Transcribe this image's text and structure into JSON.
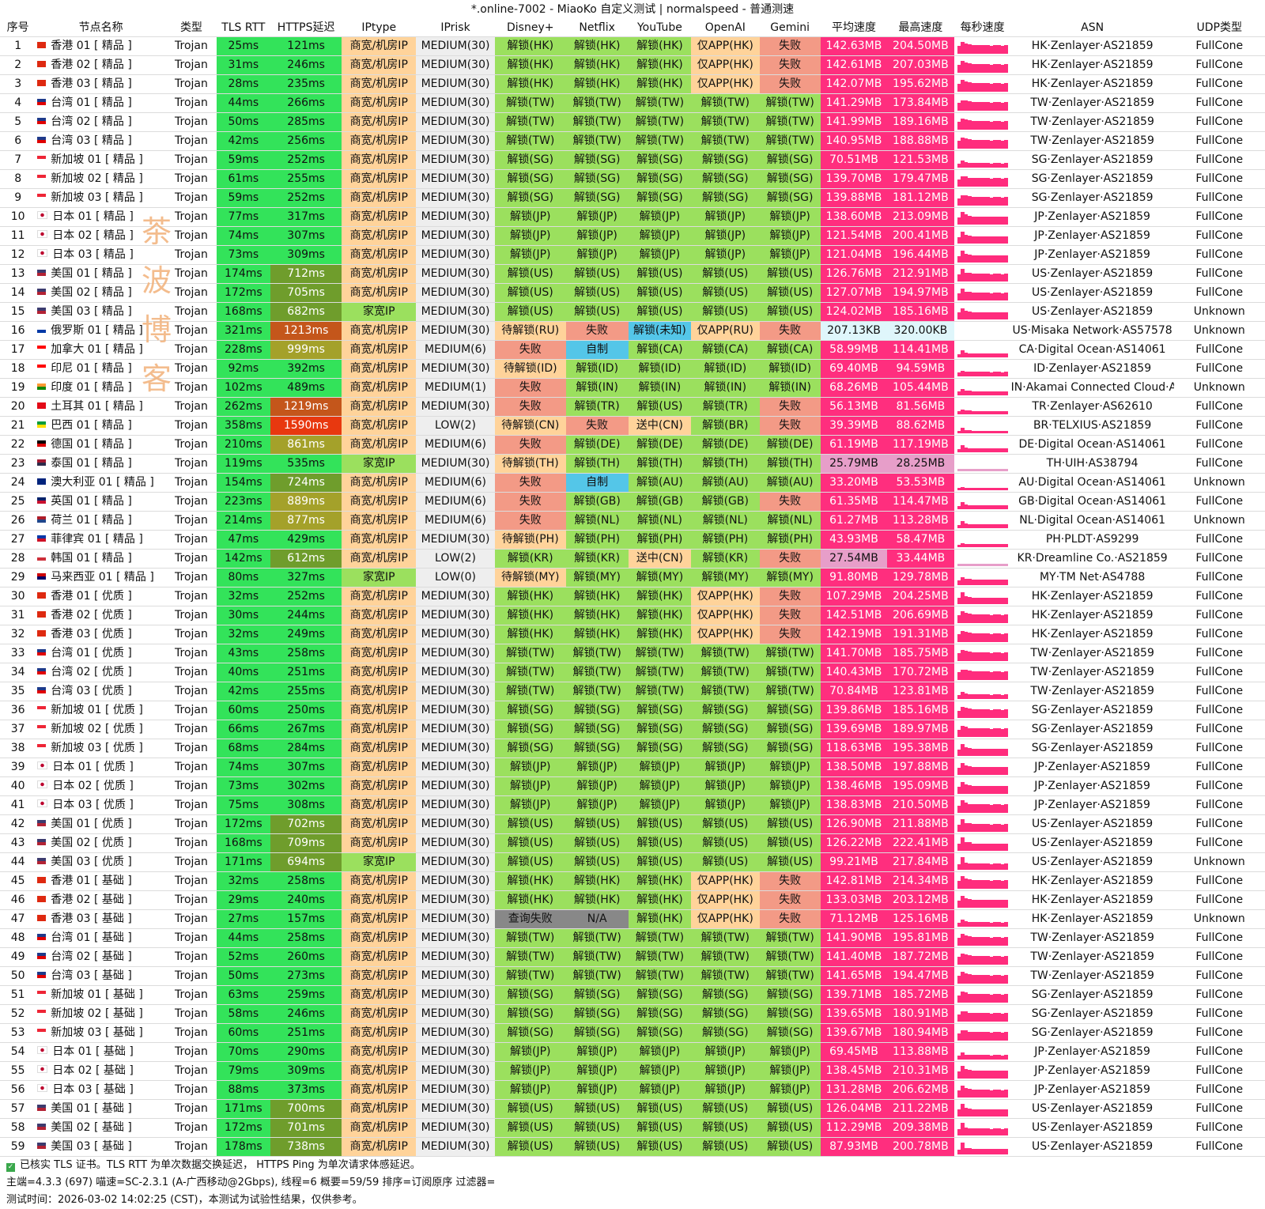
{
  "title": "*.online-7002 - MiaoKo 自定义测试 | normalspeed - 普通测速",
  "colors": {
    "green": "#33e35a",
    "lightgreen": "#9be05e",
    "orange": "#ff9f3d",
    "peach": "#ffd39a",
    "gray": "#888888",
    "lightgray": "#eeeeee",
    "red": "#ff5c5c",
    "salmon": "#f39a86",
    "pink": "#ff2e7e",
    "lightpink": "#e79ec9",
    "blue": "#54c6e8",
    "lightblue": "#dff6fb",
    "darkgreen": "#6f9d2c",
    "olive": "#a4a12a",
    "brownred": "#c4561b",
    "redorange": "#e8380f",
    "white": "#ffffff"
  },
  "headers": [
    "序号",
    "节点名称",
    "类型",
    "TLS RTT",
    "HTTPS延迟",
    "IPtype",
    "IPrisk",
    "Disney+",
    "Netflix",
    "YouTube",
    "OpenAI",
    "Gemini",
    "平均速度",
    "最高速度",
    "每秒速度",
    "ASN",
    "UDP类型"
  ],
  "rows": [
    [
      "1",
      "香港 01 [ 精品 ]",
      "Trojan",
      "25ms",
      "121ms",
      "商宽/机房IP",
      "MEDIUM(30)",
      "解锁(HK)",
      "解锁(HK)",
      "解锁(HK)",
      "仅APP(HK)",
      "失败",
      "142.63MB",
      "204.50MB",
      "HK·Zenlayer·AS21859",
      "FullCone"
    ],
    [
      "2",
      "香港 02 [ 精品 ]",
      "Trojan",
      "31ms",
      "246ms",
      "商宽/机房IP",
      "MEDIUM(30)",
      "解锁(HK)",
      "解锁(HK)",
      "解锁(HK)",
      "仅APP(HK)",
      "失败",
      "142.61MB",
      "207.03MB",
      "HK·Zenlayer·AS21859",
      "FullCone"
    ],
    [
      "3",
      "香港 03 [ 精品 ]",
      "Trojan",
      "28ms",
      "235ms",
      "商宽/机房IP",
      "MEDIUM(30)",
      "解锁(HK)",
      "解锁(HK)",
      "解锁(HK)",
      "仅APP(HK)",
      "失败",
      "142.07MB",
      "195.62MB",
      "HK·Zenlayer·AS21859",
      "FullCone"
    ],
    [
      "4",
      "台湾 01 [ 精品 ]",
      "Trojan",
      "44ms",
      "266ms",
      "商宽/机房IP",
      "MEDIUM(30)",
      "解锁(TW)",
      "解锁(TW)",
      "解锁(TW)",
      "解锁(TW)",
      "解锁(TW)",
      "141.29MB",
      "173.84MB",
      "TW·Zenlayer·AS21859",
      "FullCone"
    ],
    [
      "5",
      "台湾 02 [ 精品 ]",
      "Trojan",
      "50ms",
      "285ms",
      "商宽/机房IP",
      "MEDIUM(30)",
      "解锁(TW)",
      "解锁(TW)",
      "解锁(TW)",
      "解锁(TW)",
      "解锁(TW)",
      "141.99MB",
      "189.16MB",
      "TW·Zenlayer·AS21859",
      "FullCone"
    ],
    [
      "6",
      "台湾 03 [ 精品 ]",
      "Trojan",
      "42ms",
      "256ms",
      "商宽/机房IP",
      "MEDIUM(30)",
      "解锁(TW)",
      "解锁(TW)",
      "解锁(TW)",
      "解锁(TW)",
      "解锁(TW)",
      "140.95MB",
      "188.88MB",
      "TW·Zenlayer·AS21859",
      "FullCone"
    ],
    [
      "7",
      "新加坡 01 [ 精品 ]",
      "Trojan",
      "59ms",
      "252ms",
      "商宽/机房IP",
      "MEDIUM(30)",
      "解锁(SG)",
      "解锁(SG)",
      "解锁(SG)",
      "解锁(SG)",
      "解锁(SG)",
      "70.51MB",
      "121.53MB",
      "SG·Zenlayer·AS21859",
      "FullCone"
    ],
    [
      "8",
      "新加坡 02 [ 精品 ]",
      "Trojan",
      "61ms",
      "255ms",
      "商宽/机房IP",
      "MEDIUM(30)",
      "解锁(SG)",
      "解锁(SG)",
      "解锁(SG)",
      "解锁(SG)",
      "解锁(SG)",
      "139.70MB",
      "179.47MB",
      "SG·Zenlayer·AS21859",
      "FullCone"
    ],
    [
      "9",
      "新加坡 03 [ 精品 ]",
      "Trojan",
      "59ms",
      "252ms",
      "商宽/机房IP",
      "MEDIUM(30)",
      "解锁(SG)",
      "解锁(SG)",
      "解锁(SG)",
      "解锁(SG)",
      "解锁(SG)",
      "139.88MB",
      "181.12MB",
      "SG·Zenlayer·AS21859",
      "FullCone"
    ],
    [
      "10",
      "日本 01 [ 精品 ]",
      "Trojan",
      "77ms",
      "317ms",
      "商宽/机房IP",
      "MEDIUM(30)",
      "解锁(JP)",
      "解锁(JP)",
      "解锁(JP)",
      "解锁(JP)",
      "解锁(JP)",
      "138.60MB",
      "213.09MB",
      "JP·Zenlayer·AS21859",
      "FullCone"
    ],
    [
      "11",
      "日本 02 [ 精品 ]",
      "Trojan",
      "74ms",
      "307ms",
      "商宽/机房IP",
      "MEDIUM(30)",
      "解锁(JP)",
      "解锁(JP)",
      "解锁(JP)",
      "解锁(JP)",
      "解锁(JP)",
      "121.54MB",
      "200.41MB",
      "JP·Zenlayer·AS21859",
      "FullCone"
    ],
    [
      "12",
      "日本 03 [ 精品 ]",
      "Trojan",
      "73ms",
      "309ms",
      "商宽/机房IP",
      "MEDIUM(30)",
      "解锁(JP)",
      "解锁(JP)",
      "解锁(JP)",
      "解锁(JP)",
      "解锁(JP)",
      "121.04MB",
      "196.44MB",
      "JP·Zenlayer·AS21859",
      "FullCone"
    ],
    [
      "13",
      "美国 01 [ 精品 ]",
      "Trojan",
      "174ms",
      "712ms",
      "商宽/机房IP",
      "MEDIUM(30)",
      "解锁(US)",
      "解锁(US)",
      "解锁(US)",
      "解锁(US)",
      "解锁(US)",
      "126.76MB",
      "212.91MB",
      "US·Zenlayer·AS21859",
      "FullCone"
    ],
    [
      "14",
      "美国 02 [ 精品 ]",
      "Trojan",
      "172ms",
      "705ms",
      "商宽/机房IP",
      "MEDIUM(30)",
      "解锁(US)",
      "解锁(US)",
      "解锁(US)",
      "解锁(US)",
      "解锁(US)",
      "127.07MB",
      "194.97MB",
      "US·Zenlayer·AS21859",
      "FullCone"
    ],
    [
      "15",
      "美国 03 [ 精品 ]",
      "Trojan",
      "168ms",
      "682ms",
      "家宽IP",
      "MEDIUM(30)",
      "解锁(US)",
      "解锁(US)",
      "解锁(US)",
      "解锁(US)",
      "解锁(US)",
      "124.02MB",
      "185.16MB",
      "US·Zenlayer·AS21859",
      "Unknown"
    ],
    [
      "16",
      "俄罗斯 01 [ 精品 ]",
      "Trojan",
      "321ms",
      "1213ms",
      "商宽/机房IP",
      "MEDIUM(30)",
      "待解锁(RU)",
      "失败",
      "解锁(未知)",
      "仅APP(RU)",
      "失败",
      "207.13KB",
      "320.00KB",
      "US·Misaka Network·AS57578",
      "Unknown"
    ],
    [
      "17",
      "加拿大 01 [ 精品 ]",
      "Trojan",
      "228ms",
      "999ms",
      "商宽/机房IP",
      "MEDIUM(6)",
      "失败",
      "自制",
      "解锁(CA)",
      "解锁(CA)",
      "解锁(CA)",
      "58.99MB",
      "114.41MB",
      "CA·Digital Ocean·AS14061",
      "FullCone"
    ],
    [
      "18",
      "印尼 01 [ 精品 ]",
      "Trojan",
      "92ms",
      "392ms",
      "商宽/机房IP",
      "MEDIUM(30)",
      "待解锁(ID)",
      "解锁(ID)",
      "解锁(ID)",
      "解锁(ID)",
      "解锁(ID)",
      "69.40MB",
      "94.59MB",
      "ID·Zenlayer·AS21859",
      "FullCone"
    ],
    [
      "19",
      "印度 01 [ 精品 ]",
      "Trojan",
      "102ms",
      "489ms",
      "商宽/机房IP",
      "MEDIUM(1)",
      "失败",
      "解锁(IN)",
      "解锁(IN)",
      "解锁(IN)",
      "解锁(IN)",
      "68.26MB",
      "105.44MB",
      "IN·Akamai Connected Cloud·AS63949",
      "Unknown"
    ],
    [
      "20",
      "土耳其 01 [ 精品 ]",
      "Trojan",
      "262ms",
      "1219ms",
      "商宽/机房IP",
      "MEDIUM(30)",
      "失败",
      "解锁(TR)",
      "解锁(US)",
      "解锁(TR)",
      "失败",
      "56.13MB",
      "81.56MB",
      "TR·Zenlayer·AS62610",
      "FullCone"
    ],
    [
      "21",
      "巴西 01 [ 精品 ]",
      "Trojan",
      "358ms",
      "1590ms",
      "商宽/机房IP",
      "LOW(2)",
      "待解锁(CN)",
      "失败",
      "送中(CN)",
      "解锁(BR)",
      "失败",
      "39.39MB",
      "88.62MB",
      "BR·TELXIUS·AS21859",
      "FullCone"
    ],
    [
      "22",
      "德国 01 [ 精品 ]",
      "Trojan",
      "210ms",
      "861ms",
      "商宽/机房IP",
      "MEDIUM(6)",
      "失败",
      "解锁(DE)",
      "解锁(DE)",
      "解锁(DE)",
      "解锁(DE)",
      "61.19MB",
      "117.19MB",
      "DE·Digital Ocean·AS14061",
      "FullCone"
    ],
    [
      "23",
      "泰国 01 [ 精品 ]",
      "Trojan",
      "119ms",
      "535ms",
      "家宽IP",
      "MEDIUM(30)",
      "待解锁(TH)",
      "解锁(TH)",
      "解锁(TH)",
      "解锁(TH)",
      "解锁(TH)",
      "25.79MB",
      "28.25MB",
      "TH·UIH·AS38794",
      "FullCone"
    ],
    [
      "24",
      "澳大利亚 01 [ 精品 ]",
      "Trojan",
      "154ms",
      "724ms",
      "商宽/机房IP",
      "MEDIUM(6)",
      "失败",
      "自制",
      "解锁(AU)",
      "解锁(AU)",
      "解锁(AU)",
      "33.20MB",
      "53.53MB",
      "AU·Digital Ocean·AS14061",
      "Unknown"
    ],
    [
      "25",
      "英国 01 [ 精品 ]",
      "Trojan",
      "223ms",
      "889ms",
      "商宽/机房IP",
      "MEDIUM(6)",
      "失败",
      "解锁(GB)",
      "解锁(GB)",
      "解锁(GB)",
      "失败",
      "61.35MB",
      "114.47MB",
      "GB·Digital Ocean·AS14061",
      "FullCone"
    ],
    [
      "26",
      "荷兰 01 [ 精品 ]",
      "Trojan",
      "214ms",
      "877ms",
      "商宽/机房IP",
      "MEDIUM(6)",
      "失败",
      "解锁(NL)",
      "解锁(NL)",
      "解锁(NL)",
      "解锁(NL)",
      "61.27MB",
      "113.28MB",
      "NL·Digital Ocean·AS14061",
      "Unknown"
    ],
    [
      "27",
      "菲律宾 01 [ 精品 ]",
      "Trojan",
      "47ms",
      "429ms",
      "商宽/机房IP",
      "MEDIUM(30)",
      "待解锁(PH)",
      "解锁(PH)",
      "解锁(PH)",
      "解锁(PH)",
      "解锁(PH)",
      "43.93MB",
      "58.47MB",
      "PH·PLDT·AS9299",
      "FullCone"
    ],
    [
      "28",
      "韩国 01 [ 精品 ]",
      "Trojan",
      "142ms",
      "612ms",
      "商宽/机房IP",
      "LOW(2)",
      "解锁(KR)",
      "解锁(KR)",
      "送中(CN)",
      "解锁(KR)",
      "失败",
      "27.54MB",
      "33.44MB",
      "KR·Dreamline Co.·AS21859",
      "FullCone"
    ],
    [
      "29",
      "马来西亚 01 [ 精品 ]",
      "Trojan",
      "80ms",
      "327ms",
      "家宽IP",
      "LOW(0)",
      "待解锁(MY)",
      "解锁(MY)",
      "解锁(MY)",
      "解锁(MY)",
      "解锁(MY)",
      "91.80MB",
      "129.78MB",
      "MY·TM Net·AS4788",
      "FullCone"
    ],
    [
      "30",
      "香港 01 [ 优质 ]",
      "Trojan",
      "32ms",
      "252ms",
      "商宽/机房IP",
      "MEDIUM(30)",
      "解锁(HK)",
      "解锁(HK)",
      "解锁(HK)",
      "仅APP(HK)",
      "失败",
      "107.29MB",
      "204.25MB",
      "HK·Zenlayer·AS21859",
      "FullCone"
    ],
    [
      "31",
      "香港 02 [ 优质 ]",
      "Trojan",
      "30ms",
      "244ms",
      "商宽/机房IP",
      "MEDIUM(30)",
      "解锁(HK)",
      "解锁(HK)",
      "解锁(HK)",
      "仅APP(HK)",
      "失败",
      "142.51MB",
      "206.69MB",
      "HK·Zenlayer·AS21859",
      "FullCone"
    ],
    [
      "32",
      "香港 03 [ 优质 ]",
      "Trojan",
      "32ms",
      "249ms",
      "商宽/机房IP",
      "MEDIUM(30)",
      "解锁(HK)",
      "解锁(HK)",
      "解锁(HK)",
      "仅APP(HK)",
      "失败",
      "142.19MB",
      "191.31MB",
      "HK·Zenlayer·AS21859",
      "FullCone"
    ],
    [
      "33",
      "台湾 01 [ 优质 ]",
      "Trojan",
      "43ms",
      "258ms",
      "商宽/机房IP",
      "MEDIUM(30)",
      "解锁(TW)",
      "解锁(TW)",
      "解锁(TW)",
      "解锁(TW)",
      "解锁(TW)",
      "141.70MB",
      "185.75MB",
      "TW·Zenlayer·AS21859",
      "FullCone"
    ],
    [
      "34",
      "台湾 02 [ 优质 ]",
      "Trojan",
      "40ms",
      "251ms",
      "商宽/机房IP",
      "MEDIUM(30)",
      "解锁(TW)",
      "解锁(TW)",
      "解锁(TW)",
      "解锁(TW)",
      "解锁(TW)",
      "140.43MB",
      "170.72MB",
      "TW·Zenlayer·AS21859",
      "FullCone"
    ],
    [
      "35",
      "台湾 03 [ 优质 ]",
      "Trojan",
      "42ms",
      "255ms",
      "商宽/机房IP",
      "MEDIUM(30)",
      "解锁(TW)",
      "解锁(TW)",
      "解锁(TW)",
      "解锁(TW)",
      "解锁(TW)",
      "70.84MB",
      "123.81MB",
      "TW·Zenlayer·AS21859",
      "FullCone"
    ],
    [
      "36",
      "新加坡 01 [ 优质 ]",
      "Trojan",
      "60ms",
      "250ms",
      "商宽/机房IP",
      "MEDIUM(30)",
      "解锁(SG)",
      "解锁(SG)",
      "解锁(SG)",
      "解锁(SG)",
      "解锁(SG)",
      "139.86MB",
      "185.16MB",
      "SG·Zenlayer·AS21859",
      "FullCone"
    ],
    [
      "37",
      "新加坡 02 [ 优质 ]",
      "Trojan",
      "66ms",
      "267ms",
      "商宽/机房IP",
      "MEDIUM(30)",
      "解锁(SG)",
      "解锁(SG)",
      "解锁(SG)",
      "解锁(SG)",
      "解锁(SG)",
      "139.69MB",
      "189.97MB",
      "SG·Zenlayer·AS21859",
      "FullCone"
    ],
    [
      "38",
      "新加坡 03 [ 优质 ]",
      "Trojan",
      "68ms",
      "284ms",
      "商宽/机房IP",
      "MEDIUM(30)",
      "解锁(SG)",
      "解锁(SG)",
      "解锁(SG)",
      "解锁(SG)",
      "解锁(SG)",
      "118.63MB",
      "195.38MB",
      "SG·Zenlayer·AS21859",
      "FullCone"
    ],
    [
      "39",
      "日本 01 [ 优质 ]",
      "Trojan",
      "74ms",
      "307ms",
      "商宽/机房IP",
      "MEDIUM(30)",
      "解锁(JP)",
      "解锁(JP)",
      "解锁(JP)",
      "解锁(JP)",
      "解锁(JP)",
      "138.50MB",
      "197.88MB",
      "JP·Zenlayer·AS21859",
      "FullCone"
    ],
    [
      "40",
      "日本 02 [ 优质 ]",
      "Trojan",
      "73ms",
      "302ms",
      "商宽/机房IP",
      "MEDIUM(30)",
      "解锁(JP)",
      "解锁(JP)",
      "解锁(JP)",
      "解锁(JP)",
      "解锁(JP)",
      "138.46MB",
      "195.09MB",
      "JP·Zenlayer·AS21859",
      "FullCone"
    ],
    [
      "41",
      "日本 03 [ 优质 ]",
      "Trojan",
      "75ms",
      "308ms",
      "商宽/机房IP",
      "MEDIUM(30)",
      "解锁(JP)",
      "解锁(JP)",
      "解锁(JP)",
      "解锁(JP)",
      "解锁(JP)",
      "138.83MB",
      "210.50MB",
      "JP·Zenlayer·AS21859",
      "FullCone"
    ],
    [
      "42",
      "美国 01 [ 优质 ]",
      "Trojan",
      "172ms",
      "702ms",
      "商宽/机房IP",
      "MEDIUM(30)",
      "解锁(US)",
      "解锁(US)",
      "解锁(US)",
      "解锁(US)",
      "解锁(US)",
      "126.90MB",
      "211.88MB",
      "US·Zenlayer·AS21859",
      "FullCone"
    ],
    [
      "43",
      "美国 02 [ 优质 ]",
      "Trojan",
      "168ms",
      "709ms",
      "商宽/机房IP",
      "MEDIUM(30)",
      "解锁(US)",
      "解锁(US)",
      "解锁(US)",
      "解锁(US)",
      "解锁(US)",
      "126.22MB",
      "222.41MB",
      "US·Zenlayer·AS21859",
      "FullCone"
    ],
    [
      "44",
      "美国 03 [ 优质 ]",
      "Trojan",
      "171ms",
      "694ms",
      "家宽IP",
      "MEDIUM(30)",
      "解锁(US)",
      "解锁(US)",
      "解锁(US)",
      "解锁(US)",
      "解锁(US)",
      "99.21MB",
      "217.84MB",
      "US·Zenlayer·AS21859",
      "Unknown"
    ],
    [
      "45",
      "香港 01 [ 基础 ]",
      "Trojan",
      "32ms",
      "258ms",
      "商宽/机房IP",
      "MEDIUM(30)",
      "解锁(HK)",
      "解锁(HK)",
      "解锁(HK)",
      "仅APP(HK)",
      "失败",
      "142.81MB",
      "214.34MB",
      "HK·Zenlayer·AS21859",
      "FullCone"
    ],
    [
      "46",
      "香港 02 [ 基础 ]",
      "Trojan",
      "29ms",
      "240ms",
      "商宽/机房IP",
      "MEDIUM(30)",
      "解锁(HK)",
      "解锁(HK)",
      "解锁(HK)",
      "仅APP(HK)",
      "失败",
      "133.03MB",
      "203.12MB",
      "HK·Zenlayer·AS21859",
      "FullCone"
    ],
    [
      "47",
      "香港 03 [ 基础 ]",
      "Trojan",
      "27ms",
      "157ms",
      "商宽/机房IP",
      "MEDIUM(30)",
      "查询失败",
      "N/A",
      "解锁(HK)",
      "仅APP(HK)",
      "失败",
      "71.12MB",
      "125.16MB",
      "HK·Zenlayer·AS21859",
      "Unknown"
    ],
    [
      "48",
      "台湾 01 [ 基础 ]",
      "Trojan",
      "44ms",
      "258ms",
      "商宽/机房IP",
      "MEDIUM(30)",
      "解锁(TW)",
      "解锁(TW)",
      "解锁(TW)",
      "解锁(TW)",
      "解锁(TW)",
      "141.90MB",
      "195.81MB",
      "TW·Zenlayer·AS21859",
      "FullCone"
    ],
    [
      "49",
      "台湾 02 [ 基础 ]",
      "Trojan",
      "52ms",
      "260ms",
      "商宽/机房IP",
      "MEDIUM(30)",
      "解锁(TW)",
      "解锁(TW)",
      "解锁(TW)",
      "解锁(TW)",
      "解锁(TW)",
      "141.40MB",
      "187.72MB",
      "TW·Zenlayer·AS21859",
      "FullCone"
    ],
    [
      "50",
      "台湾 03 [ 基础 ]",
      "Trojan",
      "50ms",
      "273ms",
      "商宽/机房IP",
      "MEDIUM(30)",
      "解锁(TW)",
      "解锁(TW)",
      "解锁(TW)",
      "解锁(TW)",
      "解锁(TW)",
      "141.65MB",
      "194.47MB",
      "TW·Zenlayer·AS21859",
      "FullCone"
    ],
    [
      "51",
      "新加坡 01 [ 基础 ]",
      "Trojan",
      "63ms",
      "259ms",
      "商宽/机房IP",
      "MEDIUM(30)",
      "解锁(SG)",
      "解锁(SG)",
      "解锁(SG)",
      "解锁(SG)",
      "解锁(SG)",
      "139.71MB",
      "185.72MB",
      "SG·Zenlayer·AS21859",
      "FullCone"
    ],
    [
      "52",
      "新加坡 02 [ 基础 ]",
      "Trojan",
      "58ms",
      "246ms",
      "商宽/机房IP",
      "MEDIUM(30)",
      "解锁(SG)",
      "解锁(SG)",
      "解锁(SG)",
      "解锁(SG)",
      "解锁(SG)",
      "139.65MB",
      "180.91MB",
      "SG·Zenlayer·AS21859",
      "FullCone"
    ],
    [
      "53",
      "新加坡 03 [ 基础 ]",
      "Trojan",
      "60ms",
      "251ms",
      "商宽/机房IP",
      "MEDIUM(30)",
      "解锁(SG)",
      "解锁(SG)",
      "解锁(SG)",
      "解锁(SG)",
      "解锁(SG)",
      "139.67MB",
      "180.94MB",
      "SG·Zenlayer·AS21859",
      "FullCone"
    ],
    [
      "54",
      "日本 01 [ 基础 ]",
      "Trojan",
      "70ms",
      "290ms",
      "商宽/机房IP",
      "MEDIUM(30)",
      "解锁(JP)",
      "解锁(JP)",
      "解锁(JP)",
      "解锁(JP)",
      "解锁(JP)",
      "69.45MB",
      "113.88MB",
      "JP·Zenlayer·AS21859",
      "FullCone"
    ],
    [
      "55",
      "日本 02 [ 基础 ]",
      "Trojan",
      "79ms",
      "309ms",
      "商宽/机房IP",
      "MEDIUM(30)",
      "解锁(JP)",
      "解锁(JP)",
      "解锁(JP)",
      "解锁(JP)",
      "解锁(JP)",
      "138.45MB",
      "210.31MB",
      "JP·Zenlayer·AS21859",
      "FullCone"
    ],
    [
      "56",
      "日本 03 [ 基础 ]",
      "Trojan",
      "88ms",
      "373ms",
      "商宽/机房IP",
      "MEDIUM(30)",
      "解锁(JP)",
      "解锁(JP)",
      "解锁(JP)",
      "解锁(JP)",
      "解锁(JP)",
      "131.28MB",
      "206.62MB",
      "JP·Zenlayer·AS21859",
      "FullCone"
    ],
    [
      "57",
      "美国 01 [ 基础 ]",
      "Trojan",
      "171ms",
      "700ms",
      "商宽/机房IP",
      "MEDIUM(30)",
      "解锁(US)",
      "解锁(US)",
      "解锁(US)",
      "解锁(US)",
      "解锁(US)",
      "126.04MB",
      "211.22MB",
      "US·Zenlayer·AS21859",
      "FullCone"
    ],
    [
      "58",
      "美国 02 [ 基础 ]",
      "Trojan",
      "172ms",
      "701ms",
      "商宽/机房IP",
      "MEDIUM(30)",
      "解锁(US)",
      "解锁(US)",
      "解锁(US)",
      "解锁(US)",
      "解锁(US)",
      "112.29MB",
      "209.38MB",
      "US·Zenlayer·AS21859",
      "FullCone"
    ],
    [
      "59",
      "美国 03 [ 基础 ]",
      "Trojan",
      "178ms",
      "738ms",
      "商宽/机房IP",
      "MEDIUM(30)",
      "解锁(US)",
      "解锁(US)",
      "解锁(US)",
      "解锁(US)",
      "解锁(US)",
      "87.93MB",
      "200.78MB",
      "US·Zenlayer·AS21859",
      "FullCone"
    ]
  ],
  "footer": {
    "line1": "已核实 TLS 证书。TLS RTT 为单次数据交换延迟， HTTPS Ping 为单次请求体感延迟。",
    "line2": "主端=4.3.3 (697) 喵速=SC-2.3.1 (A-广西移动@2Gbps), 线程=6 概要=59/59 排序=订阅原序 过滤器=",
    "line3": "测试时间：2026-03-02 14:02:25 (CST)，本测试为试验性结果，仅供参考。"
  },
  "watermark": [
    "茶",
    "波",
    "博",
    "客"
  ]
}
